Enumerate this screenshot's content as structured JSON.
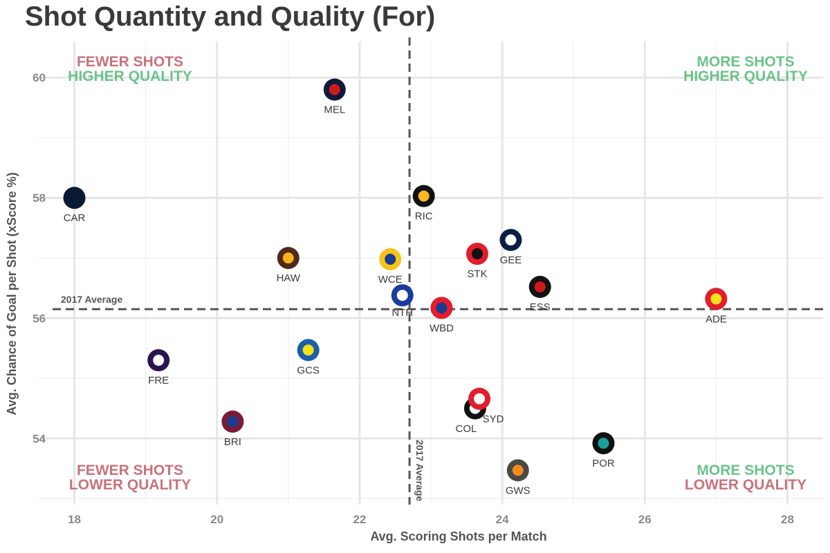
{
  "chart_data": {
    "type": "scatter",
    "title": "Shot Quantity and Quality (For)",
    "xlabel": "Avg. Scoring Shots per Match",
    "ylabel": "Avg. Chance of Goal per Shot (xScore %)",
    "xlim": [
      17.5,
      28.5
    ],
    "ylim": [
      52.9,
      60.6
    ],
    "xticks": [
      18,
      20,
      22,
      24,
      26,
      28
    ],
    "yticks": [
      54,
      56,
      58,
      60
    ],
    "grid": true,
    "reference_lines": {
      "x_average": 22.7,
      "y_average": 56.15,
      "label": "2017 Average"
    },
    "quadrant_labels": {
      "top_left": [
        "FEWER SHOTS",
        "HIGHER QUALITY"
      ],
      "top_right": [
        "MORE SHOTS",
        "HIGHER QUALITY"
      ],
      "bottom_left": [
        "FEWER SHOTS",
        "LOWER QUALITY"
      ],
      "bottom_right": [
        "MORE SHOTS",
        "LOWER QUALITY"
      ]
    },
    "colors": {
      "fewer": "#c9727a",
      "more": "#6cc28a",
      "higher": "#6cc28a",
      "lower": "#c9727a"
    },
    "points": [
      {
        "team": "MEL",
        "x": 21.65,
        "y": 59.8,
        "outer": "#0f1a3a",
        "inner": "#cc1b1b"
      },
      {
        "team": "CAR",
        "x": 18.0,
        "y": 58.0,
        "outer": "#0b1a33",
        "inner": "#0b1a33"
      },
      {
        "team": "RIC",
        "x": 22.9,
        "y": 58.03,
        "outer": "#111111",
        "inner": "#f5b820"
      },
      {
        "team": "GEE",
        "x": 24.12,
        "y": 57.3,
        "outer": "#0e1c45",
        "inner": "#ffffff"
      },
      {
        "team": "HAW",
        "x": 21.0,
        "y": 57.0,
        "outer": "#4d2b16",
        "inner": "#f6b31b"
      },
      {
        "team": "WCE",
        "x": 22.43,
        "y": 56.98,
        "outer": "#f6c21d",
        "inner": "#1a3c8e"
      },
      {
        "team": "STK",
        "x": 23.65,
        "y": 57.07,
        "outer": "#e21d2c",
        "inner": "#111111"
      },
      {
        "team": "ESS",
        "x": 24.53,
        "y": 56.52,
        "outer": "#111111",
        "inner": "#cc1b1b"
      },
      {
        "team": "ADE",
        "x": 27.0,
        "y": 56.32,
        "outer": "#e21d2c",
        "inner": "#f6e11d"
      },
      {
        "team": "NTH",
        "x": 22.6,
        "y": 56.38,
        "outer": "#1a3c9e",
        "inner": "#ffffff"
      },
      {
        "team": "WBD",
        "x": 23.15,
        "y": 56.17,
        "outer": "#e21d2c",
        "inner": "#1a3c8e"
      },
      {
        "team": "FRE",
        "x": 19.18,
        "y": 55.3,
        "outer": "#2c1450",
        "inner": "#ffffff"
      },
      {
        "team": "GCS",
        "x": 21.28,
        "y": 55.47,
        "outer": "#1b5fa8",
        "inner": "#f6e11d"
      },
      {
        "team": "COL",
        "x": 23.62,
        "y": 54.5,
        "outer": "#111111",
        "inner": "#ffffff"
      },
      {
        "team": "SYD",
        "x": 23.68,
        "y": 54.66,
        "outer": "#e21d2c",
        "inner": "#ffffff"
      },
      {
        "team": "BRI",
        "x": 20.22,
        "y": 54.28,
        "outer": "#7a1b3a",
        "inner": "#1a3c8e"
      },
      {
        "team": "POR",
        "x": 25.42,
        "y": 53.92,
        "outer": "#111111",
        "inner": "#17a39b"
      },
      {
        "team": "GWS",
        "x": 24.22,
        "y": 53.47,
        "outer": "#4a4a42",
        "inner": "#f38b20"
      }
    ]
  }
}
